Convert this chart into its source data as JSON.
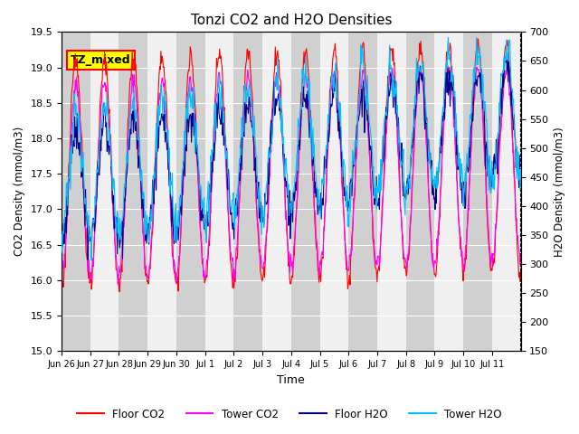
{
  "title": "Tonzi CO2 and H2O Densities",
  "xlabel": "Time",
  "ylabel_left": "CO2 Density (mmol/m3)",
  "ylabel_right": "H2O Density (mmol/m3)",
  "ylim_left": [
    15.0,
    19.5
  ],
  "ylim_right": [
    150,
    700
  ],
  "yticks_left": [
    15.0,
    15.5,
    16.0,
    16.5,
    17.0,
    17.5,
    18.0,
    18.5,
    19.0,
    19.5
  ],
  "yticks_right": [
    150,
    200,
    250,
    300,
    350,
    400,
    450,
    500,
    550,
    600,
    650,
    700
  ],
  "xtick_labels": [
    "Jun 26",
    "Jun 27",
    "Jun 28",
    "Jun 29",
    "Jun 30",
    "Jul 1",
    "Jul 2",
    "Jul 3",
    "Jul 4",
    "Jul 5",
    "Jul 6",
    "Jul 7",
    "Jul 8",
    "Jul 9",
    "Jul 10",
    "Jul 11"
  ],
  "annotation_text": "TZ_mixed",
  "annotation_facecolor": "#ffff00",
  "annotation_edgecolor": "#ff0000",
  "colors": {
    "floor_co2": "#ff0000",
    "tower_co2": "#ff00ff",
    "floor_h2o": "#00008b",
    "tower_h2o": "#00bfff"
  },
  "legend_labels": [
    "Floor CO2",
    "Tower CO2",
    "Floor H2O",
    "Tower H2O"
  ],
  "n_days": 16,
  "points_per_day": 48
}
